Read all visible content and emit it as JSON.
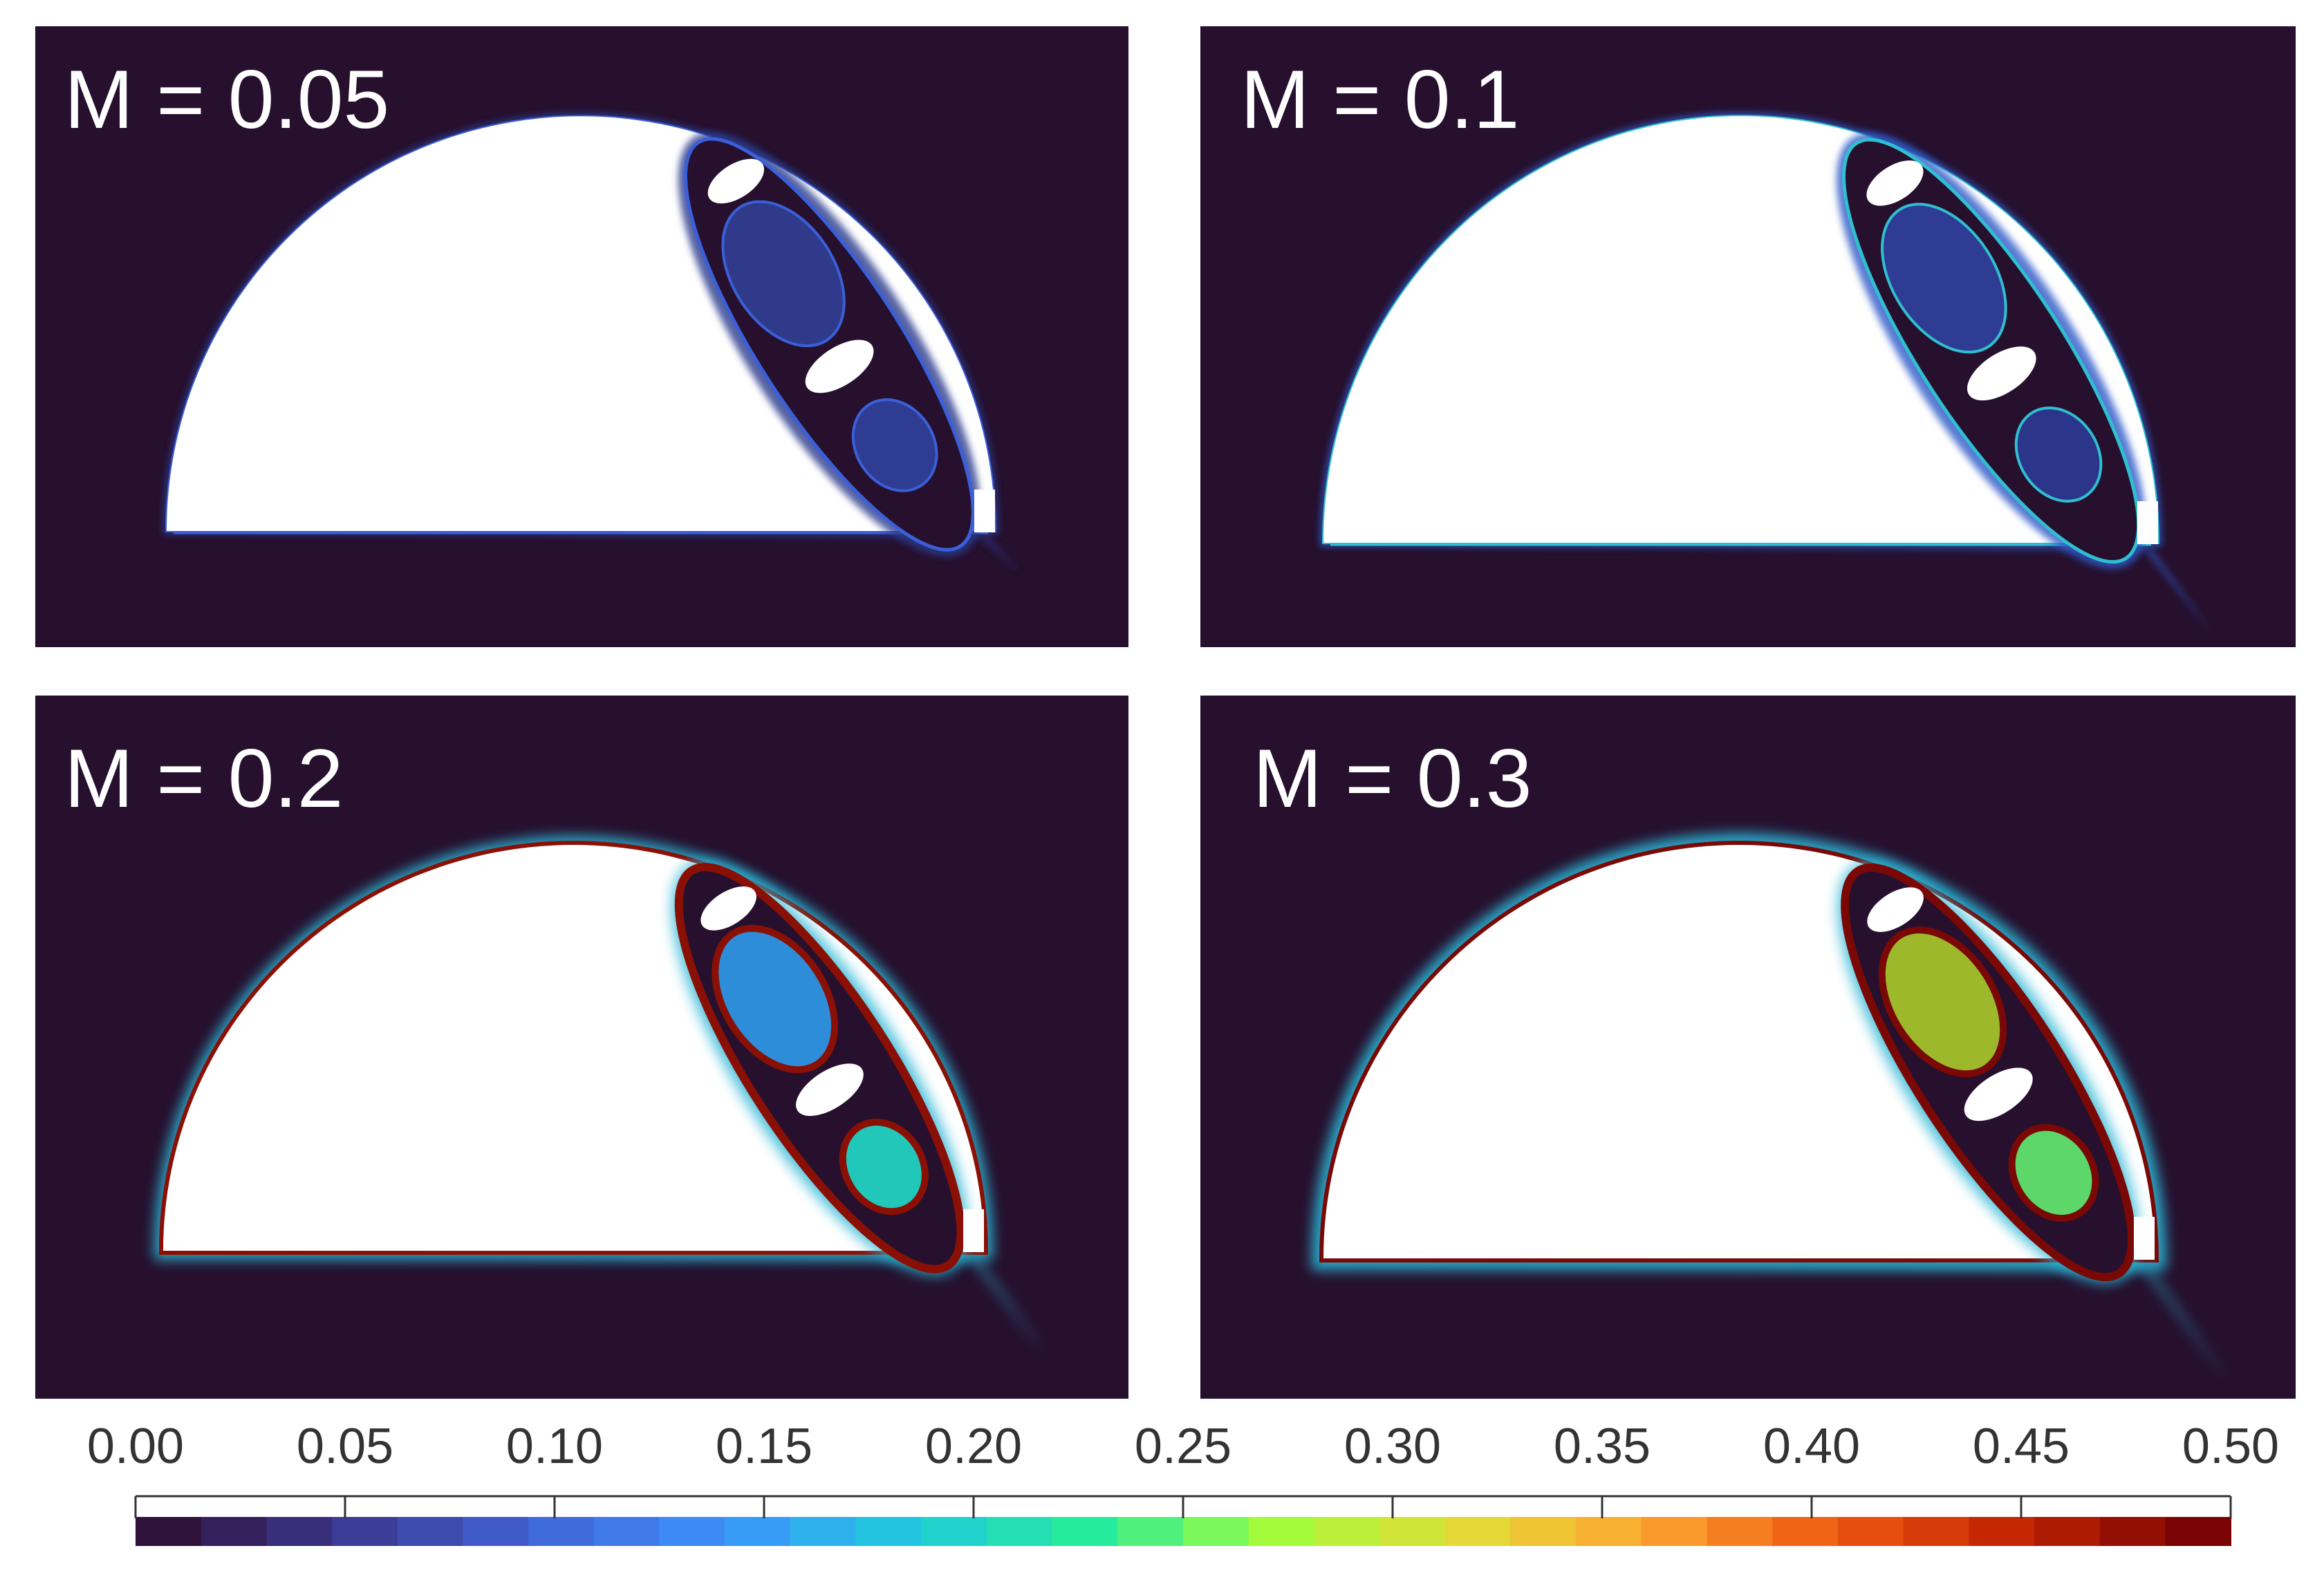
{
  "panels": [
    {
      "id": "p1",
      "label": "M = 0.05",
      "level": "low",
      "inner_big": "#303a8a",
      "inner_small": "#2e3c92",
      "rim": "#3a5fd8",
      "outer": "#2a3a8e"
    },
    {
      "id": "p2",
      "label": "M = 0.1",
      "level": "low",
      "inner_big": "#2f3c94",
      "inner_small": "#2b358a",
      "rim": "#2fbfd0",
      "outer": "#2f5ac8"
    },
    {
      "id": "p3",
      "label": "M = 0.2",
      "level": "mid",
      "inner_big": "#2e8dd8",
      "inner_small": "#21c7b8",
      "rim": "#8a1005",
      "outer": "#2bb6d6"
    },
    {
      "id": "p4",
      "label": "M = 0.3",
      "level": "high",
      "inner_big": "#9db82a",
      "inner_small": "#5dd66a",
      "rim": "#7a0805",
      "outer": "#2bb6d6"
    }
  ],
  "colorbar": {
    "min": 0.0,
    "max": 0.5,
    "ticks": [
      "0.00",
      "0.05",
      "0.10",
      "0.15",
      "0.20",
      "0.25",
      "0.30",
      "0.35",
      "0.40",
      "0.45",
      "0.50"
    ],
    "colors": [
      "#30123b",
      "#3b3a93",
      "#4165d6",
      "#3d91fb",
      "#1fc9dd",
      "#27ec9a",
      "#a2fc3c",
      "#e2dd37",
      "#fca531",
      "#ef5a11",
      "#c22402",
      "#7a0403"
    ]
  },
  "colors": {
    "background": "#26102e",
    "body": "#ffffff"
  }
}
